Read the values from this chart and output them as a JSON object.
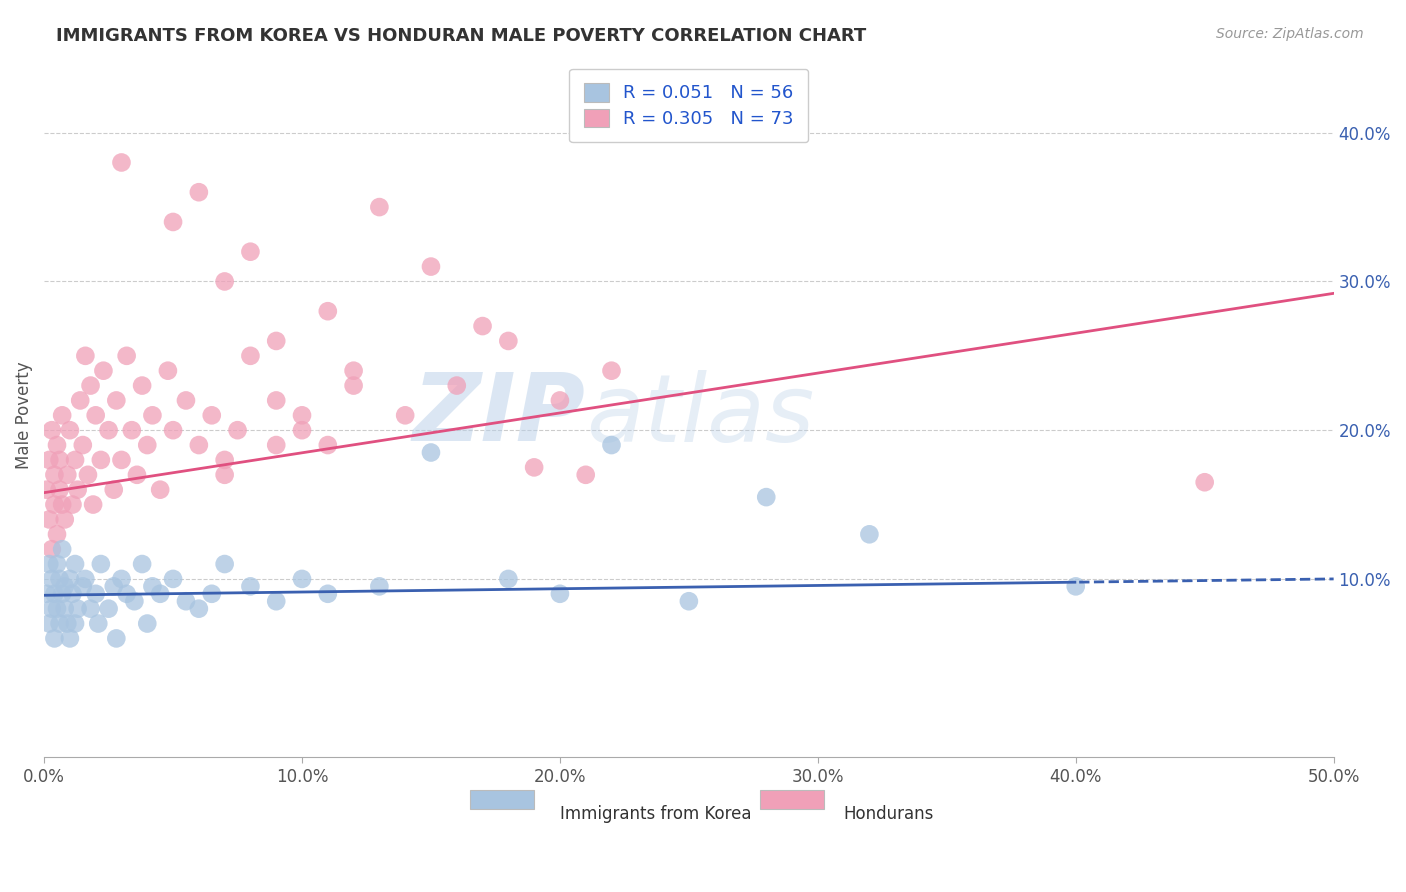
{
  "title": "IMMIGRANTS FROM KOREA VS HONDURAN MALE POVERTY CORRELATION CHART",
  "source_text": "Source: ZipAtlas.com",
  "ylabel": "Male Poverty",
  "xlim": [
    0.0,
    0.5
  ],
  "ylim": [
    -0.02,
    0.44
  ],
  "xticks": [
    0.0,
    0.1,
    0.2,
    0.3,
    0.4,
    0.5
  ],
  "xtick_labels": [
    "0.0%",
    "10.0%",
    "20.0%",
    "30.0%",
    "40.0%",
    "50.0%"
  ],
  "yticks_right": [
    0.1,
    0.2,
    0.3,
    0.4
  ],
  "ytick_right_labels": [
    "10.0%",
    "20.0%",
    "30.0%",
    "40.0%"
  ],
  "blue_R": 0.051,
  "blue_N": 56,
  "pink_R": 0.305,
  "pink_N": 73,
  "blue_color": "#a8c4e0",
  "pink_color": "#f0a0b8",
  "blue_line_color": "#3a60b0",
  "pink_line_color": "#e05080",
  "legend_blue_label": "Immigrants from Korea",
  "legend_pink_label": "Hondurans",
  "watermark_zip": "ZIP",
  "watermark_atlas": "atlas",
  "background_color": "#ffffff",
  "grid_color": "#cccccc",
  "title_color": "#333333",
  "legend_R_color": "#2255cc",
  "blue_line_intercept": 0.089,
  "blue_line_slope": 0.022,
  "pink_line_intercept": 0.158,
  "pink_line_slope": 0.268,
  "blue_data_x": [
    0.001,
    0.002,
    0.002,
    0.003,
    0.003,
    0.004,
    0.004,
    0.005,
    0.005,
    0.006,
    0.006,
    0.007,
    0.007,
    0.008,
    0.008,
    0.009,
    0.01,
    0.01,
    0.011,
    0.012,
    0.012,
    0.013,
    0.015,
    0.016,
    0.018,
    0.02,
    0.021,
    0.022,
    0.025,
    0.027,
    0.028,
    0.03,
    0.032,
    0.035,
    0.038,
    0.04,
    0.042,
    0.045,
    0.05,
    0.055,
    0.06,
    0.065,
    0.07,
    0.08,
    0.09,
    0.1,
    0.11,
    0.13,
    0.15,
    0.18,
    0.2,
    0.22,
    0.25,
    0.28,
    0.32,
    0.4
  ],
  "blue_data_y": [
    0.09,
    0.07,
    0.11,
    0.08,
    0.1,
    0.09,
    0.06,
    0.11,
    0.08,
    0.07,
    0.1,
    0.09,
    0.12,
    0.08,
    0.095,
    0.07,
    0.1,
    0.06,
    0.09,
    0.11,
    0.07,
    0.08,
    0.095,
    0.1,
    0.08,
    0.09,
    0.07,
    0.11,
    0.08,
    0.095,
    0.06,
    0.1,
    0.09,
    0.085,
    0.11,
    0.07,
    0.095,
    0.09,
    0.1,
    0.085,
    0.08,
    0.09,
    0.11,
    0.095,
    0.085,
    0.1,
    0.09,
    0.095,
    0.185,
    0.1,
    0.09,
    0.19,
    0.085,
    0.155,
    0.13,
    0.095
  ],
  "pink_data_x": [
    0.001,
    0.002,
    0.002,
    0.003,
    0.003,
    0.004,
    0.004,
    0.005,
    0.005,
    0.006,
    0.006,
    0.007,
    0.007,
    0.008,
    0.009,
    0.01,
    0.011,
    0.012,
    0.013,
    0.014,
    0.015,
    0.016,
    0.017,
    0.018,
    0.019,
    0.02,
    0.022,
    0.023,
    0.025,
    0.027,
    0.028,
    0.03,
    0.032,
    0.034,
    0.036,
    0.038,
    0.04,
    0.042,
    0.045,
    0.048,
    0.05,
    0.055,
    0.06,
    0.065,
    0.07,
    0.075,
    0.08,
    0.09,
    0.1,
    0.11,
    0.12,
    0.14,
    0.16,
    0.18,
    0.2,
    0.22,
    0.07,
    0.09,
    0.1,
    0.12,
    0.06,
    0.08,
    0.11,
    0.03,
    0.05,
    0.07,
    0.09,
    0.13,
    0.15,
    0.17,
    0.19,
    0.21,
    0.45
  ],
  "pink_data_y": [
    0.16,
    0.18,
    0.14,
    0.2,
    0.12,
    0.17,
    0.15,
    0.19,
    0.13,
    0.16,
    0.18,
    0.15,
    0.21,
    0.14,
    0.17,
    0.2,
    0.15,
    0.18,
    0.16,
    0.22,
    0.19,
    0.25,
    0.17,
    0.23,
    0.15,
    0.21,
    0.18,
    0.24,
    0.2,
    0.16,
    0.22,
    0.18,
    0.25,
    0.2,
    0.17,
    0.23,
    0.19,
    0.21,
    0.16,
    0.24,
    0.2,
    0.22,
    0.19,
    0.21,
    0.18,
    0.2,
    0.25,
    0.22,
    0.2,
    0.19,
    0.24,
    0.21,
    0.23,
    0.26,
    0.22,
    0.24,
    0.17,
    0.19,
    0.21,
    0.23,
    0.36,
    0.32,
    0.28,
    0.38,
    0.34,
    0.3,
    0.26,
    0.35,
    0.31,
    0.27,
    0.175,
    0.17,
    0.165
  ]
}
